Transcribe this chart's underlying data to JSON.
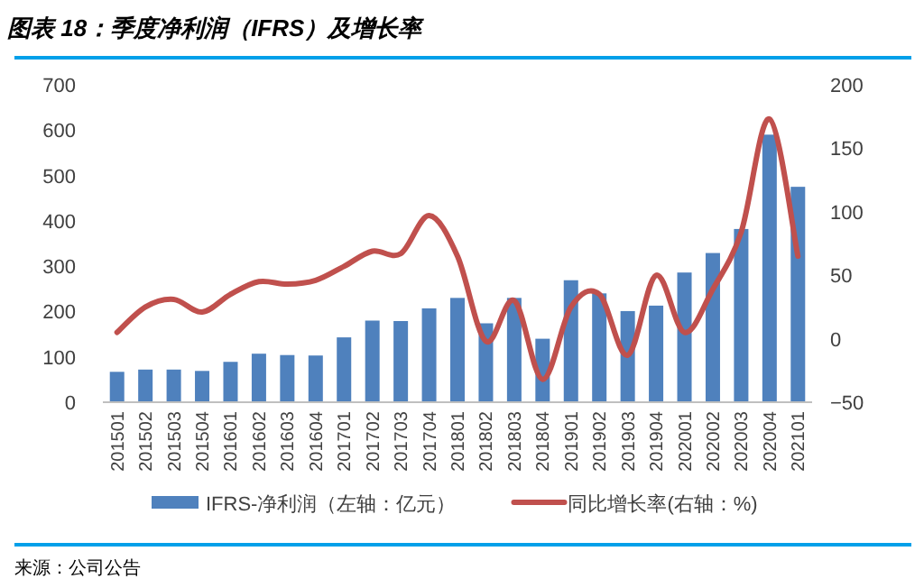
{
  "chart_data": {
    "type": "bar",
    "title": "图表 18：季度净利润（IFRS）及增长率",
    "annotations": [
      "来源：公司公告"
    ],
    "categories": [
      "201501",
      "201502",
      "201503",
      "201504",
      "201601",
      "201602",
      "201603",
      "201604",
      "201701",
      "201702",
      "201703",
      "201704",
      "201801",
      "201802",
      "201803",
      "201804",
      "201901",
      "201902",
      "201903",
      "201904",
      "202001",
      "202002",
      "202003",
      "202004",
      "202101"
    ],
    "series": [
      {
        "name": "IFRS-净利润（左轴：亿元）",
        "color": "#4f81bd",
        "values": [
          67,
          72,
          72,
          69,
          89,
          107,
          104,
          103,
          143,
          180,
          179,
          207,
          230,
          174,
          230,
          140,
          269,
          240,
          201,
          213,
          286,
          329,
          382,
          590,
          475
        ]
      },
      {
        "name": "同比增长率(右轴：%)",
        "type": "line",
        "axis": "y2",
        "color": "#c0504d",
        "values": [
          5,
          25,
          31,
          21,
          35,
          45,
          43,
          46,
          57,
          69,
          67,
          97,
          65,
          -2,
          30,
          -32,
          25,
          35,
          -13,
          50,
          5,
          39,
          84,
          173,
          65
        ]
      }
    ],
    "ylim": [
      0,
      700
    ],
    "yticks": [
      0,
      100,
      200,
      300,
      400,
      500,
      600,
      700
    ],
    "y2lim": [
      -50,
      200
    ],
    "y2ticks": [
      {
        "value": -50,
        "label": "−50"
      },
      0,
      50,
      100,
      150,
      200
    ],
    "legend": "bottom",
    "grid": false
  }
}
